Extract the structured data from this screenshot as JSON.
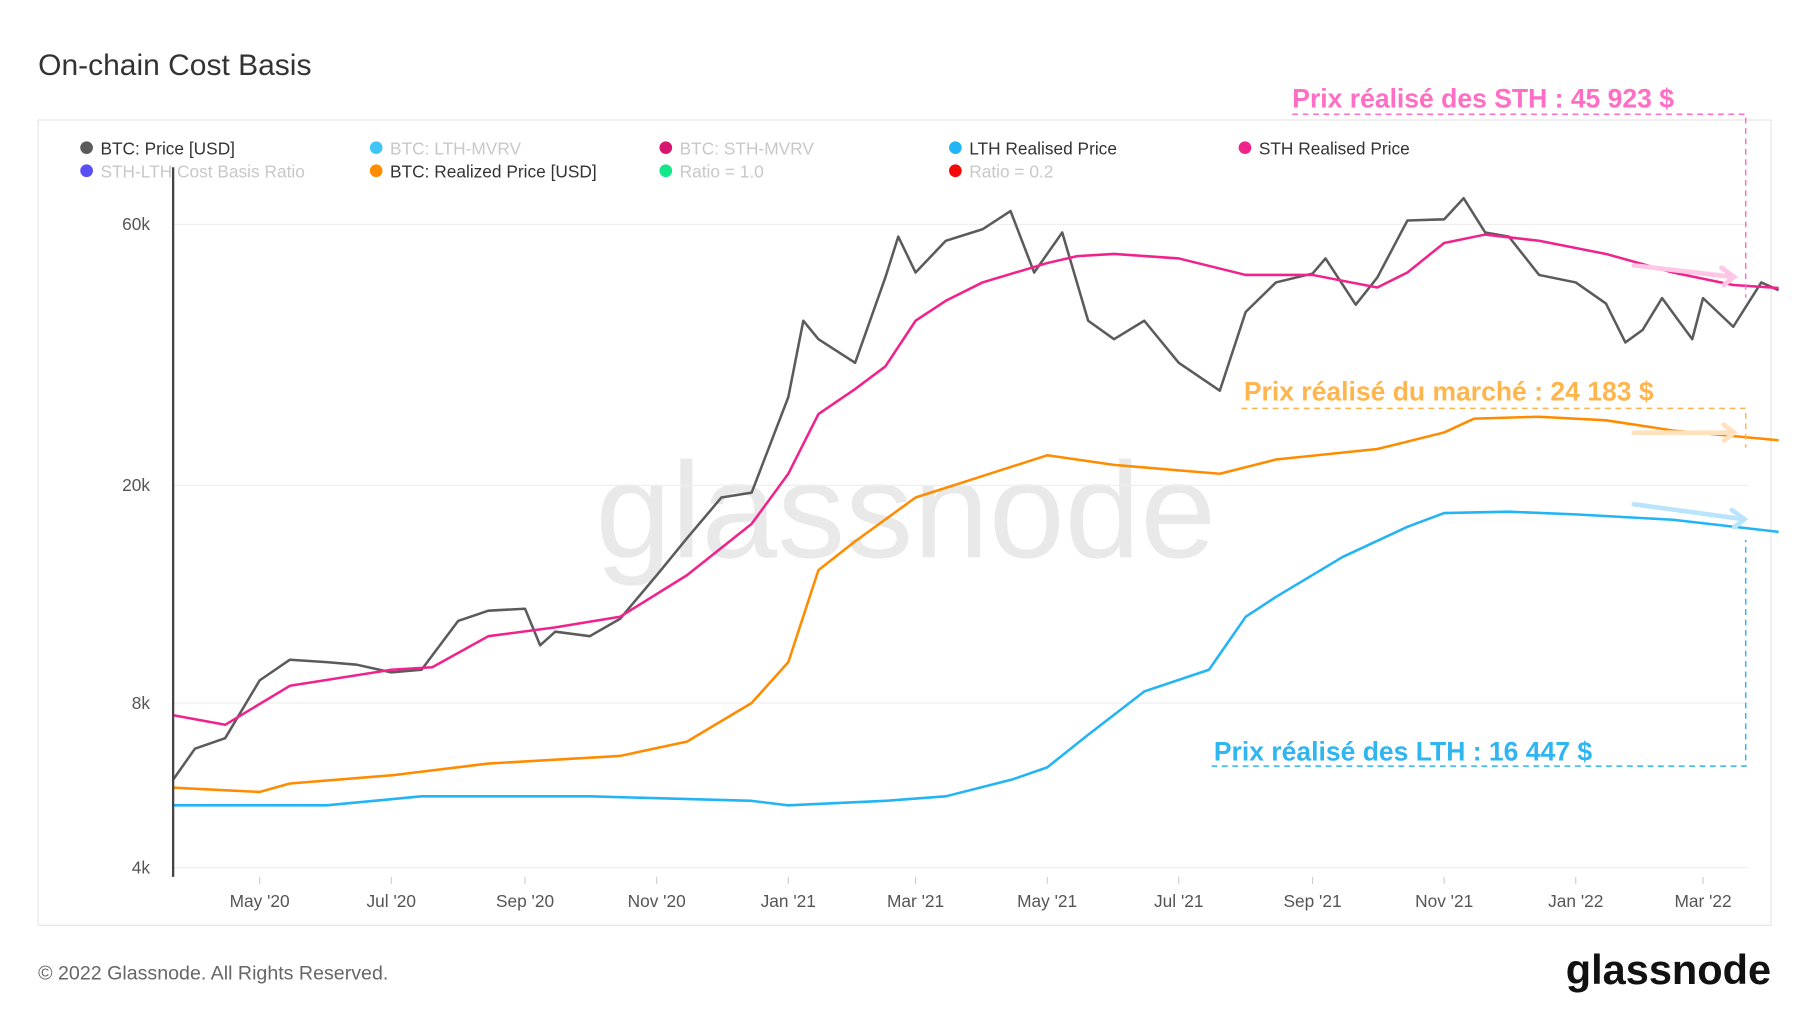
{
  "title": "On-chain Cost Basis",
  "footer": {
    "copyright": "© 2022 Glassnode. All Rights Reserved.",
    "logo": "glassnode",
    "watermark": "glassnode"
  },
  "legend": [
    {
      "label": "BTC: Price [USD]",
      "color": "#5b5b5b",
      "active": true
    },
    {
      "label": "BTC: LTH-MVRV",
      "color": "#3fc6f5",
      "active": false
    },
    {
      "label": "BTC: STH-MVRV",
      "color": "#d6166f",
      "active": false
    },
    {
      "label": "LTH Realised Price",
      "color": "#22b4f5",
      "active": true
    },
    {
      "label": "STH Realised Price",
      "color": "#f0228b",
      "active": true
    },
    {
      "label": "STH-LTH Cost Basis Ratio",
      "color": "#5a4ff5",
      "active": false
    },
    {
      "label": "BTC: Realized Price [USD]",
      "color": "#ff8c00",
      "active": true
    },
    {
      "label": "Ratio = 1.0",
      "color": "#12e88a",
      "active": false
    },
    {
      "label": "Ratio = 0.2",
      "color": "#f50a0a",
      "active": false
    }
  ],
  "annotations": {
    "sth": {
      "text": "Prix réalisé des STH : 45 923 $",
      "color": "#ff6ec4",
      "arrow_color": "#ffc6e6"
    },
    "market": {
      "text": "Prix réalisé du marché : 24 183 $",
      "color": "#ffb54d",
      "arrow_color": "#ffe2bd"
    },
    "lth": {
      "text": "Prix réalisé des LTH : 16 447 $",
      "color": "#2fb5f0",
      "arrow_color": "#b9e4fb"
    }
  },
  "chart_data": {
    "type": "line",
    "title": "On-chain Cost Basis",
    "y_scale": "log",
    "ylim": [
      4000,
      80000
    ],
    "y_ticks": [
      {
        "value": 4000,
        "label": "4k"
      },
      {
        "value": 8000,
        "label": "8k"
      },
      {
        "value": 20000,
        "label": "20k"
      },
      {
        "value": 60000,
        "label": "60k"
      }
    ],
    "x_ticks": [
      {
        "date": "2020-05-01",
        "label": "May '20"
      },
      {
        "date": "2020-07-01",
        "label": "Jul '20"
      },
      {
        "date": "2020-09-01",
        "label": "Sep '20"
      },
      {
        "date": "2020-11-01",
        "label": "Nov '20"
      },
      {
        "date": "2021-01-01",
        "label": "Jan '21"
      },
      {
        "date": "2021-03-01",
        "label": "Mar '21"
      },
      {
        "date": "2021-05-01",
        "label": "May '21"
      },
      {
        "date": "2021-07-01",
        "label": "Jul '21"
      },
      {
        "date": "2021-09-01",
        "label": "Sep '21"
      },
      {
        "date": "2021-11-01",
        "label": "Nov '21"
      },
      {
        "date": "2022-01-01",
        "label": "Jan '22"
      },
      {
        "date": "2022-03-01",
        "label": "Mar '22"
      }
    ],
    "xlim": [
      "2020-03-22",
      "2022-04-08"
    ],
    "grid": true,
    "legend_position": "top",
    "series": [
      {
        "name": "BTC: Price [USD]",
        "color": "#5b5b5b",
        "points": [
          [
            "2020-03-22",
            5800
          ],
          [
            "2020-04-01",
            6600
          ],
          [
            "2020-04-15",
            6900
          ],
          [
            "2020-05-01",
            8800
          ],
          [
            "2020-05-15",
            9600
          ],
          [
            "2020-06-01",
            9500
          ],
          [
            "2020-06-15",
            9400
          ],
          [
            "2020-07-01",
            9100
          ],
          [
            "2020-07-15",
            9200
          ],
          [
            "2020-08-01",
            11300
          ],
          [
            "2020-08-15",
            11800
          ],
          [
            "2020-09-01",
            11900
          ],
          [
            "2020-09-08",
            10200
          ],
          [
            "2020-09-15",
            10800
          ],
          [
            "2020-10-01",
            10600
          ],
          [
            "2020-10-15",
            11400
          ],
          [
            "2020-11-01",
            13700
          ],
          [
            "2020-11-15",
            16000
          ],
          [
            "2020-12-01",
            19000
          ],
          [
            "2020-12-15",
            19400
          ],
          [
            "2021-01-01",
            29000
          ],
          [
            "2021-01-08",
            40000
          ],
          [
            "2021-01-15",
            37000
          ],
          [
            "2021-02-01",
            33500
          ],
          [
            "2021-02-15",
            48000
          ],
          [
            "2021-02-21",
            57000
          ],
          [
            "2021-03-01",
            49000
          ],
          [
            "2021-03-15",
            56000
          ],
          [
            "2021-04-01",
            58800
          ],
          [
            "2021-04-14",
            63500
          ],
          [
            "2021-04-25",
            49000
          ],
          [
            "2021-05-08",
            58000
          ],
          [
            "2021-05-20",
            40000
          ],
          [
            "2021-06-01",
            37000
          ],
          [
            "2021-06-15",
            40000
          ],
          [
            "2021-07-01",
            33500
          ],
          [
            "2021-07-20",
            29800
          ],
          [
            "2021-08-01",
            41500
          ],
          [
            "2021-08-15",
            47000
          ],
          [
            "2021-09-01",
            48800
          ],
          [
            "2021-09-07",
            52000
          ],
          [
            "2021-09-21",
            42800
          ],
          [
            "2021-10-01",
            48000
          ],
          [
            "2021-10-15",
            61000
          ],
          [
            "2021-11-01",
            61300
          ],
          [
            "2021-11-10",
            67000
          ],
          [
            "2021-11-20",
            58000
          ],
          [
            "2021-12-01",
            57000
          ],
          [
            "2021-12-15",
            48500
          ],
          [
            "2022-01-01",
            47000
          ],
          [
            "2022-01-15",
            43000
          ],
          [
            "2022-01-24",
            36500
          ],
          [
            "2022-02-01",
            38500
          ],
          [
            "2022-02-10",
            44000
          ],
          [
            "2022-02-24",
            37000
          ],
          [
            "2022-03-01",
            44000
          ],
          [
            "2022-03-15",
            39000
          ],
          [
            "2022-03-28",
            47000
          ],
          [
            "2022-04-05",
            45500
          ]
        ]
      },
      {
        "name": "STH Realised Price",
        "color": "#f0228b",
        "points": [
          [
            "2020-03-22",
            7600
          ],
          [
            "2020-04-15",
            7300
          ],
          [
            "2020-05-15",
            8600
          ],
          [
            "2020-07-01",
            9200
          ],
          [
            "2020-07-20",
            9300
          ],
          [
            "2020-08-15",
            10600
          ],
          [
            "2020-09-15",
            11000
          ],
          [
            "2020-10-15",
            11500
          ],
          [
            "2020-11-15",
            13700
          ],
          [
            "2020-12-15",
            17000
          ],
          [
            "2021-01-01",
            21000
          ],
          [
            "2021-01-15",
            27000
          ],
          [
            "2021-02-01",
            30000
          ],
          [
            "2021-02-15",
            33000
          ],
          [
            "2021-03-01",
            40000
          ],
          [
            "2021-03-15",
            43500
          ],
          [
            "2021-04-01",
            47000
          ],
          [
            "2021-05-01",
            51000
          ],
          [
            "2021-05-15",
            52500
          ],
          [
            "2021-06-01",
            53000
          ],
          [
            "2021-07-01",
            52000
          ],
          [
            "2021-08-01",
            48500
          ],
          [
            "2021-09-01",
            48500
          ],
          [
            "2021-10-01",
            46000
          ],
          [
            "2021-10-15",
            49000
          ],
          [
            "2021-11-01",
            55500
          ],
          [
            "2021-11-20",
            57500
          ],
          [
            "2021-12-15",
            56000
          ],
          [
            "2022-01-15",
            53000
          ],
          [
            "2022-02-15",
            49000
          ],
          [
            "2022-03-15",
            46500
          ],
          [
            "2022-04-05",
            45923
          ]
        ]
      },
      {
        "name": "BTC: Realized Price [USD]",
        "color": "#ff8c00",
        "points": [
          [
            "2020-03-22",
            5600
          ],
          [
            "2020-05-01",
            5500
          ],
          [
            "2020-05-15",
            5700
          ],
          [
            "2020-07-01",
            5900
          ],
          [
            "2020-08-15",
            6200
          ],
          [
            "2020-10-15",
            6400
          ],
          [
            "2020-11-15",
            6800
          ],
          [
            "2020-12-15",
            8000
          ],
          [
            "2021-01-01",
            9500
          ],
          [
            "2021-01-15",
            14000
          ],
          [
            "2021-02-01",
            15800
          ],
          [
            "2021-03-01",
            19000
          ],
          [
            "2021-04-01",
            20800
          ],
          [
            "2021-05-01",
            22700
          ],
          [
            "2021-06-01",
            21800
          ],
          [
            "2021-07-01",
            21300
          ],
          [
            "2021-07-20",
            21000
          ],
          [
            "2021-08-15",
            22300
          ],
          [
            "2021-10-01",
            23300
          ],
          [
            "2021-11-01",
            25000
          ],
          [
            "2021-11-15",
            26500
          ],
          [
            "2021-12-15",
            26700
          ],
          [
            "2022-01-15",
            26300
          ],
          [
            "2022-02-15",
            25200
          ],
          [
            "2022-04-05",
            24183
          ]
        ]
      },
      {
        "name": "LTH Realised Price",
        "color": "#22b4f5",
        "points": [
          [
            "2020-03-22",
            5200
          ],
          [
            "2020-06-01",
            5200
          ],
          [
            "2020-07-15",
            5400
          ],
          [
            "2020-10-01",
            5400
          ],
          [
            "2020-12-15",
            5300
          ],
          [
            "2021-01-01",
            5200
          ],
          [
            "2021-02-15",
            5300
          ],
          [
            "2021-03-15",
            5400
          ],
          [
            "2021-04-15",
            5800
          ],
          [
            "2021-05-01",
            6100
          ],
          [
            "2021-05-20",
            7000
          ],
          [
            "2021-06-15",
            8400
          ],
          [
            "2021-07-15",
            9200
          ],
          [
            "2021-08-01",
            11500
          ],
          [
            "2021-08-15",
            12500
          ],
          [
            "2021-09-15",
            14800
          ],
          [
            "2021-10-15",
            16800
          ],
          [
            "2021-11-01",
            17800
          ],
          [
            "2021-12-01",
            17900
          ],
          [
            "2022-01-01",
            17700
          ],
          [
            "2022-02-15",
            17300
          ],
          [
            "2022-04-05",
            16447
          ]
        ]
      }
    ]
  }
}
